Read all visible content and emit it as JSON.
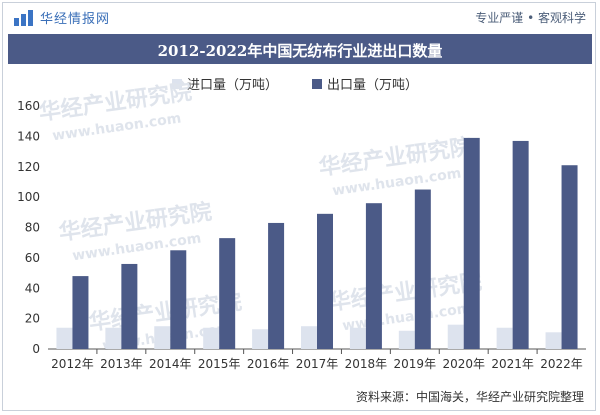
{
  "header": {
    "brand_name": "华经情报网",
    "tagline": "专业严谨 • 客观科学"
  },
  "title": "2012-2022年中国无纺布行业进出口数量",
  "watermark": {
    "cn": "华经产业研究院",
    "url": "www.huaon.com"
  },
  "source": "资料来源：中国海关，华经产业研究院整理",
  "colors": {
    "import": "#dde3ee",
    "export": "#4b5a87",
    "title_bg": "#4b5a87",
    "brand": "#3b74c4"
  },
  "chart_data": {
    "type": "bar",
    "title": "2012-2022年中国无纺布行业进出口数量",
    "categories": [
      "2012年",
      "2013年",
      "2014年",
      "2015年",
      "2016年",
      "2017年",
      "2018年",
      "2019年",
      "2020年",
      "2021年",
      "2022年"
    ],
    "series": [
      {
        "name": "进口量（万吨）",
        "color": "#dde3ee",
        "values": [
          14,
          14,
          15,
          14,
          13,
          15,
          14,
          12,
          16,
          14,
          11
        ]
      },
      {
        "name": "出口量（万吨）",
        "color": "#4b5a87",
        "values": [
          48,
          56,
          65,
          73,
          83,
          89,
          96,
          105,
          139,
          137,
          121
        ]
      }
    ],
    "ylim": [
      0,
      160
    ],
    "yticks": [
      0,
      20,
      40,
      60,
      80,
      100,
      120,
      140,
      160
    ],
    "legend_position": "top",
    "grid": false
  }
}
